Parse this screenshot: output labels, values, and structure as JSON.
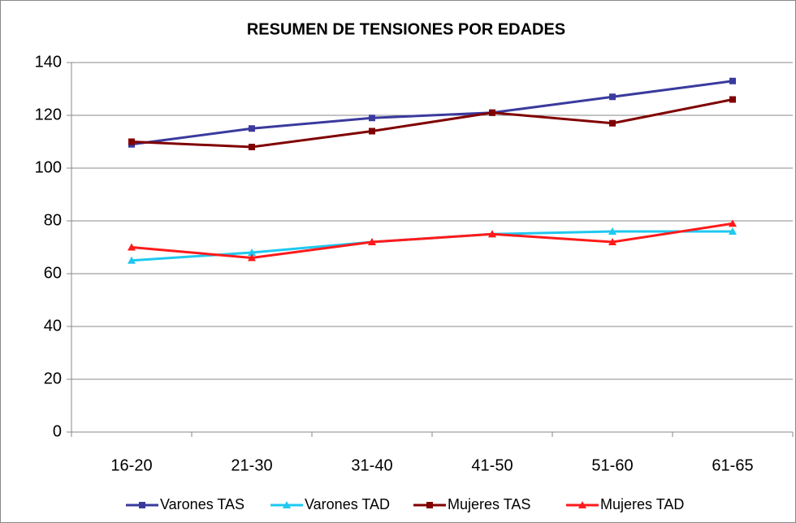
{
  "chart_data": {
    "type": "line",
    "title": "RESUMEN DE TENSIONES POR EDADES",
    "categories": [
      "16-20",
      "21-30",
      "31-40",
      "41-50",
      "51-60",
      "61-65"
    ],
    "series": [
      {
        "name": "Varones TAS",
        "color": "#3a3a9e",
        "marker": "square",
        "values": [
          109,
          115,
          119,
          121,
          127,
          133
        ]
      },
      {
        "name": "Varones TAD",
        "color": "#1ec8f0",
        "marker": "triangle",
        "values": [
          65,
          68,
          72,
          75,
          76,
          76
        ]
      },
      {
        "name": "Mujeres TAS",
        "color": "#800000",
        "marker": "square",
        "values": [
          110,
          108,
          114,
          121,
          117,
          126
        ]
      },
      {
        "name": "Mujeres TAD",
        "color": "#ff1a1a",
        "marker": "triangle",
        "values": [
          70,
          66,
          72,
          75,
          72,
          79
        ]
      }
    ],
    "ylim": [
      0,
      140
    ],
    "yticks": [
      0,
      20,
      40,
      60,
      80,
      100,
      120,
      140
    ],
    "grid": true,
    "legend": "bottom"
  }
}
